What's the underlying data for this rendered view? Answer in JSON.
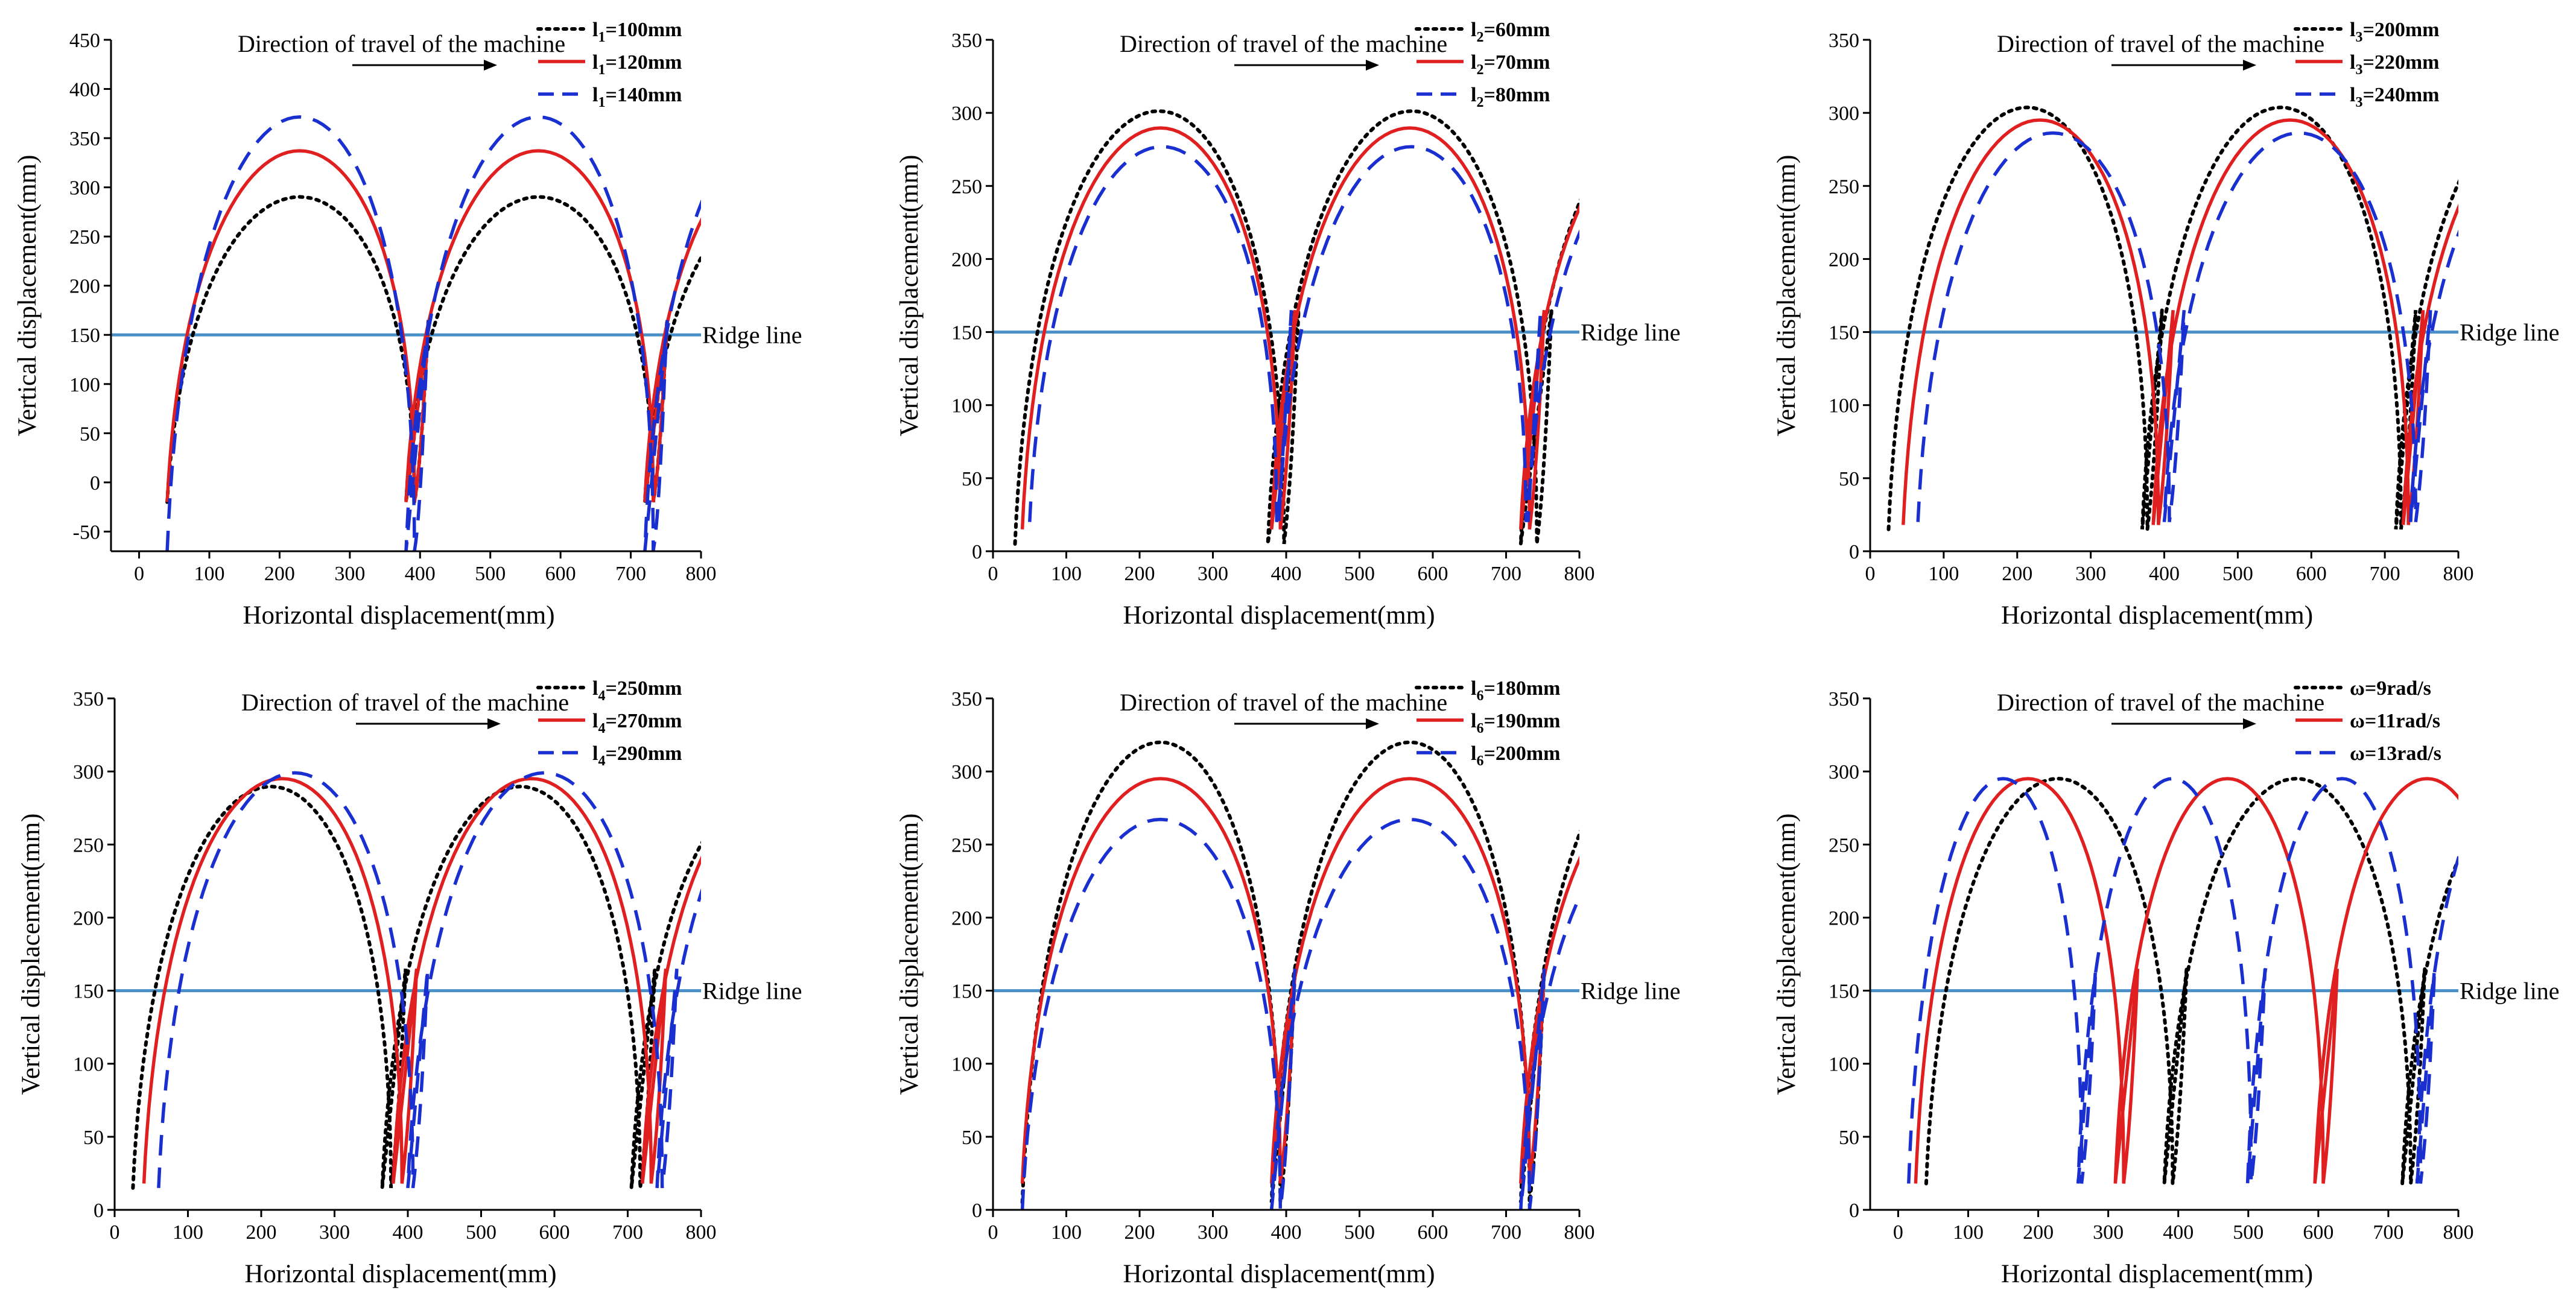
{
  "chart_data": [
    {
      "type": "line",
      "title": "",
      "xlabel": "Horizontal displacement(mm)",
      "ylabel": "Vertical displacement(mm)",
      "xlim": [
        -40,
        800
      ],
      "ylim": [
        -70,
        450
      ],
      "xticks": [
        "0",
        "100",
        "200",
        "300",
        "400",
        "500",
        "600",
        "700",
        "800"
      ],
      "xtick_values": [
        0,
        100,
        200,
        300,
        400,
        500,
        600,
        700,
        800
      ],
      "yticks": [
        "-50",
        "0",
        "50",
        "100",
        "150",
        "200",
        "250",
        "300",
        "350",
        "400",
        "450"
      ],
      "ytick_values": [
        -50,
        0,
        50,
        100,
        150,
        200,
        250,
        300,
        350,
        400,
        450
      ],
      "direction_label": "Direction of travel of the machine",
      "ridge": {
        "y": 150,
        "label": "Ridge line",
        "color": "#4a90c8"
      },
      "legend_position": "top-right",
      "series": [
        {
          "name": "l1=100mm",
          "prefix": "l",
          "sub": "1",
          "suffix": "=100mm",
          "color": "#000000",
          "style": "dotted",
          "xs": 55,
          "xb": 400,
          "amp": 315,
          "ymin": -20,
          "period": 340,
          "cycles": 3
        },
        {
          "name": "l1=120mm",
          "prefix": "l",
          "sub": "1",
          "suffix": "=120mm",
          "color": "#e02020",
          "style": "solid",
          "xs": 55,
          "xb": 400,
          "amp": 365,
          "ymin": -20,
          "period": 340,
          "cycles": 3
        },
        {
          "name": "l1=140mm",
          "prefix": "l",
          "sub": "1",
          "suffix": "=140mm",
          "color": "#1a2fd0",
          "style": "dashed",
          "xs": 55,
          "xb": 400,
          "amp": 415,
          "ymin": -70,
          "period": 340,
          "cycles": 3
        }
      ]
    },
    {
      "type": "line",
      "title": "",
      "xlabel": "Horizontal displacement(mm)",
      "ylabel": "Vertical displacement(mm)",
      "xlim": [
        0,
        800
      ],
      "ylim": [
        0,
        350
      ],
      "xticks": [
        "0",
        "100",
        "200",
        "300",
        "400",
        "500",
        "600",
        "700",
        "800"
      ],
      "xtick_values": [
        0,
        100,
        200,
        300,
        400,
        500,
        600,
        700,
        800
      ],
      "yticks": [
        "0",
        "50",
        "100",
        "150",
        "200",
        "250",
        "300",
        "350"
      ],
      "ytick_values": [
        0,
        50,
        100,
        150,
        200,
        250,
        300,
        350
      ],
      "direction_label": "Direction of travel of the machine",
      "ridge": {
        "y": 150,
        "label": "Ridge line",
        "color": "#4a90c8"
      },
      "legend_position": "top-right",
      "series": [
        {
          "name": "l2=60mm",
          "prefix": "l",
          "sub": "2",
          "suffix": "=60mm",
          "color": "#000000",
          "style": "dotted",
          "xs": 45,
          "xb": 405,
          "amp": 320,
          "ymin": 5,
          "period": 345,
          "cycles": 3
        },
        {
          "name": "l2=70mm",
          "prefix": "l",
          "sub": "2",
          "suffix": "=70mm",
          "color": "#e02020",
          "style": "solid",
          "xs": 55,
          "xb": 400,
          "amp": 305,
          "ymin": 15,
          "period": 340,
          "cycles": 3
        },
        {
          "name": "l2=80mm",
          "prefix": "l",
          "sub": "2",
          "suffix": "=80mm",
          "color": "#1a2fd0",
          "style": "dashed",
          "xs": 65,
          "xb": 395,
          "amp": 290,
          "ymin": 20,
          "period": 340,
          "cycles": 3
        }
      ]
    },
    {
      "type": "line",
      "title": "",
      "xlabel": "Horizontal displacement(mm)",
      "ylabel": "Vertical displacement(mm)",
      "xlim": [
        0,
        800
      ],
      "ylim": [
        0,
        350
      ],
      "xticks": [
        "0",
        "100",
        "200",
        "300",
        "400",
        "500",
        "600",
        "700",
        "800"
      ],
      "xtick_values": [
        0,
        100,
        200,
        300,
        400,
        500,
        600,
        700,
        800
      ],
      "yticks": [
        "0",
        "50",
        "100",
        "150",
        "200",
        "250",
        "300",
        "350"
      ],
      "ytick_values": [
        0,
        50,
        100,
        150,
        200,
        250,
        300,
        350
      ],
      "direction_label": "Direction of travel of the machine",
      "ridge": {
        "y": 150,
        "label": "Ridge line",
        "color": "#4a90c8"
      },
      "legend_position": "top-right",
      "series": [
        {
          "name": "l3=200mm",
          "prefix": "l",
          "sub": "3",
          "suffix": "=200mm",
          "color": "#000000",
          "style": "dotted",
          "xs": 40,
          "xb": 385,
          "amp": 320,
          "ymin": 15,
          "period": 345,
          "cycles": 3
        },
        {
          "name": "l3=220mm",
          "prefix": "l",
          "sub": "3",
          "suffix": "=220mm",
          "color": "#e02020",
          "style": "solid",
          "xs": 60,
          "xb": 400,
          "amp": 310,
          "ymin": 18,
          "period": 340,
          "cycles": 3
        },
        {
          "name": "l3=240mm",
          "prefix": "l",
          "sub": "3",
          "suffix": "=240mm",
          "color": "#1a2fd0",
          "style": "dashed",
          "xs": 80,
          "xb": 415,
          "amp": 300,
          "ymin": 20,
          "period": 335,
          "cycles": 3
        }
      ]
    },
    {
      "type": "line",
      "title": "",
      "xlabel": "Horizontal displacement(mm)",
      "ylabel": "Vertical displacement(mm)",
      "xlim": [
        0,
        800
      ],
      "ylim": [
        0,
        350
      ],
      "xticks": [
        "0",
        "100",
        "200",
        "300",
        "400",
        "500",
        "600",
        "700",
        "800"
      ],
      "xtick_values": [
        0,
        100,
        200,
        300,
        400,
        500,
        600,
        700,
        800
      ],
      "yticks": [
        "0",
        "50",
        "100",
        "150",
        "200",
        "250",
        "300",
        "350"
      ],
      "ytick_values": [
        0,
        50,
        100,
        150,
        200,
        250,
        300,
        350
      ],
      "direction_label": "Direction of travel of the machine",
      "ridge": {
        "y": 150,
        "label": "Ridge line",
        "color": "#4a90c8"
      },
      "legend_position": "top-right",
      "series": [
        {
          "name": "l4=250mm",
          "prefix": "l",
          "sub": "4",
          "suffix": "=250mm",
          "color": "#000000",
          "style": "dotted",
          "xs": 40,
          "xb": 385,
          "amp": 305,
          "ymin": 15,
          "period": 340,
          "cycles": 3
        },
        {
          "name": "l4=270mm",
          "prefix": "l",
          "sub": "4",
          "suffix": "=270mm",
          "color": "#e02020",
          "style": "solid",
          "xs": 55,
          "xb": 400,
          "amp": 310,
          "ymin": 18,
          "period": 340,
          "cycles": 3
        },
        {
          "name": "l4=290mm",
          "prefix": "l",
          "sub": "4",
          "suffix": "=290mm",
          "color": "#1a2fd0",
          "style": "dashed",
          "xs": 75,
          "xb": 415,
          "amp": 315,
          "ymin": 15,
          "period": 340,
          "cycles": 3
        }
      ]
    },
    {
      "type": "line",
      "title": "",
      "xlabel": "Horizontal displacement(mm)",
      "ylabel": "Vertical displacement(mm)",
      "xlim": [
        0,
        800
      ],
      "ylim": [
        0,
        350
      ],
      "xticks": [
        "0",
        "100",
        "200",
        "300",
        "400",
        "500",
        "600",
        "700",
        "800"
      ],
      "xtick_values": [
        0,
        100,
        200,
        300,
        400,
        500,
        600,
        700,
        800
      ],
      "yticks": [
        "0",
        "50",
        "100",
        "150",
        "200",
        "250",
        "300",
        "350"
      ],
      "ytick_values": [
        0,
        50,
        100,
        150,
        200,
        250,
        300,
        350
      ],
      "direction_label": "Direction of travel of the machine",
      "ridge": {
        "y": 150,
        "label": "Ridge line",
        "color": "#4a90c8"
      },
      "legend_position": "top-right",
      "series": [
        {
          "name": "l6=180mm",
          "prefix": "l",
          "sub": "6",
          "suffix": "=180mm",
          "color": "#000000",
          "style": "dotted",
          "xs": 55,
          "xb": 400,
          "amp": 340,
          "ymin": 5,
          "period": 340,
          "cycles": 3
        },
        {
          "name": "l6=190mm",
          "prefix": "l",
          "sub": "6",
          "suffix": "=190mm",
          "color": "#e02020",
          "style": "solid",
          "xs": 55,
          "xb": 400,
          "amp": 310,
          "ymin": 18,
          "period": 340,
          "cycles": 3
        },
        {
          "name": "l6=200mm",
          "prefix": "l",
          "sub": "6",
          "suffix": "=200mm",
          "color": "#1a2fd0",
          "style": "dashed",
          "xs": 55,
          "xb": 400,
          "amp": 285,
          "ymin": 0,
          "period": 340,
          "cycles": 3
        }
      ]
    },
    {
      "type": "line",
      "title": "",
      "xlabel": "Horizontal displacement(mm)",
      "ylabel": "Vertical displacement(mm)",
      "xlim": [
        -40,
        800
      ],
      "ylim": [
        0,
        350
      ],
      "xticks": [
        "0",
        "100",
        "200",
        "300",
        "400",
        "500",
        "600",
        "700",
        "800"
      ],
      "xtick_values": [
        0,
        100,
        200,
        300,
        400,
        500,
        600,
        700,
        800
      ],
      "yticks": [
        "0",
        "50",
        "100",
        "150",
        "200",
        "250",
        "300",
        "350"
      ],
      "ytick_values": [
        0,
        50,
        100,
        150,
        200,
        250,
        300,
        350
      ],
      "direction_label": "Direction of travel of the machine",
      "ridge": {
        "y": 150,
        "label": "Ridge line",
        "color": "#4a90c8"
      },
      "legend_position": "top-right",
      "series": [
        {
          "name": "ω=9rad/s",
          "prefix": "ω",
          "sub": "",
          "suffix": "=9rad/s",
          "color": "#000000",
          "style": "dotted",
          "xs": 55,
          "xb": 400,
          "amp": 310,
          "ymin": 18,
          "period": 340,
          "cycles": 3
        },
        {
          "name": "ω=11rad/s",
          "prefix": "ω",
          "sub": "",
          "suffix": "=11rad/s",
          "color": "#e02020",
          "style": "solid",
          "xs": 40,
          "xb": 330,
          "amp": 310,
          "ymin": 18,
          "period": 285,
          "cycles": 3
        },
        {
          "name": "ω=13rad/s",
          "prefix": "ω",
          "sub": "",
          "suffix": "=13rad/s",
          "color": "#1a2fd0",
          "style": "dashed",
          "xs": 30,
          "xb": 270,
          "amp": 310,
          "ymin": 18,
          "period": 242,
          "cycles": 4
        }
      ]
    }
  ]
}
